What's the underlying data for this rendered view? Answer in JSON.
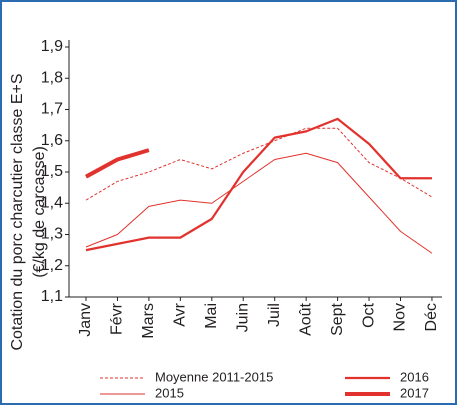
{
  "chart_data": {
    "type": "line",
    "ylabel": [
      "Cotation du porc charcutier classe E+S",
      "(€/kg de carcasse)"
    ],
    "categories": [
      "Janv",
      "Févr",
      "Mars",
      "Avr",
      "Mai",
      "Juin",
      "Juil",
      "Août",
      "Sept",
      "Oct",
      "Nov",
      "Déc"
    ],
    "series": [
      {
        "name": "Moyenne 2011-2015",
        "color": "#e2322d",
        "dash": true,
        "width": 1,
        "values": [
          1.41,
          1.47,
          1.5,
          1.54,
          1.51,
          1.56,
          1.6,
          1.64,
          1.64,
          1.53,
          1.48,
          1.42
        ]
      },
      {
        "name": "2015",
        "color": "#e2322d",
        "dash": false,
        "width": 1,
        "values": [
          1.26,
          1.3,
          1.39,
          1.41,
          1.4,
          1.47,
          1.54,
          1.56,
          1.53,
          1.42,
          1.31,
          1.24
        ]
      },
      {
        "name": "2016",
        "color": "#e2322d",
        "dash": false,
        "width": 2.2,
        "values": [
          1.25,
          1.27,
          1.29,
          1.29,
          1.35,
          1.5,
          1.61,
          1.63,
          1.67,
          1.59,
          1.48,
          1.48
        ]
      },
      {
        "name": "2017",
        "color": "#e2322d",
        "dash": false,
        "width": 4,
        "values": [
          1.485,
          1.54,
          1.57,
          null,
          null,
          null,
          null,
          null,
          null,
          null,
          null,
          null
        ]
      }
    ],
    "ylim": [
      1.1,
      1.9
    ],
    "yticks": [
      {
        "value": 1.1,
        "label": "1,1"
      },
      {
        "value": 1.2,
        "label": "1,2"
      },
      {
        "value": 1.3,
        "label": "1,3"
      },
      {
        "value": 1.4,
        "label": "1,4"
      },
      {
        "value": 1.5,
        "label": "1,5"
      },
      {
        "value": 1.6,
        "label": "1,6"
      },
      {
        "value": 1.7,
        "label": "1,7"
      },
      {
        "value": 1.8,
        "label": "1,8"
      },
      {
        "value": 1.9,
        "label": "1,9"
      }
    ],
    "grid": false
  }
}
